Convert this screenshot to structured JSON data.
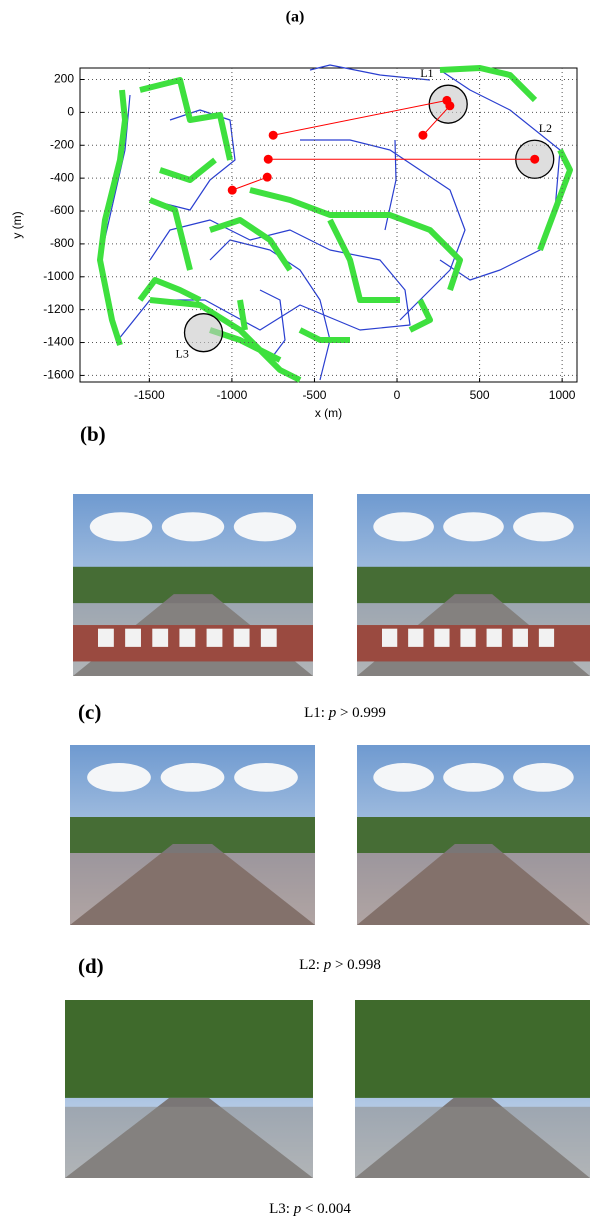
{
  "panels": {
    "a": "(a)",
    "b": "(b)",
    "c": "(c)",
    "d": "(d)"
  },
  "chart_data": {
    "type": "map",
    "xlabel": "x (m)",
    "ylabel": "y (m)",
    "xlim": [
      -1920,
      1090
    ],
    "ylim": [
      -1640,
      270
    ],
    "xticks": [
      -1500,
      -1000,
      -500,
      0,
      500,
      1000
    ],
    "yticks": [
      200,
      0,
      -200,
      -400,
      -600,
      -800,
      -1000,
      -1200,
      -1400,
      -1600
    ],
    "grid": true,
    "match_points": {
      "color": "#ff0000",
      "x": [
        302,
        320,
        157,
        -750,
        -780,
        834,
        -786,
        -998
      ],
      "y": [
        73,
        40,
        -139,
        -139,
        -285,
        -285,
        -394,
        -473
      ]
    },
    "loops": [
      {
        "label": "L1",
        "x": 310,
        "y": 50
      },
      {
        "label": "L2",
        "x": 834,
        "y": -285
      },
      {
        "label": "L3",
        "x": -1172,
        "y": -1340
      }
    ]
  },
  "captions": [
    {
      "label": "L1:",
      "stat": "p",
      "test": "> 0.999"
    },
    {
      "label": "L2:",
      "stat": "p",
      "test": "> 0.998"
    },
    {
      "label": "L3:",
      "stat": "p",
      "test": "< 0.004"
    }
  ]
}
